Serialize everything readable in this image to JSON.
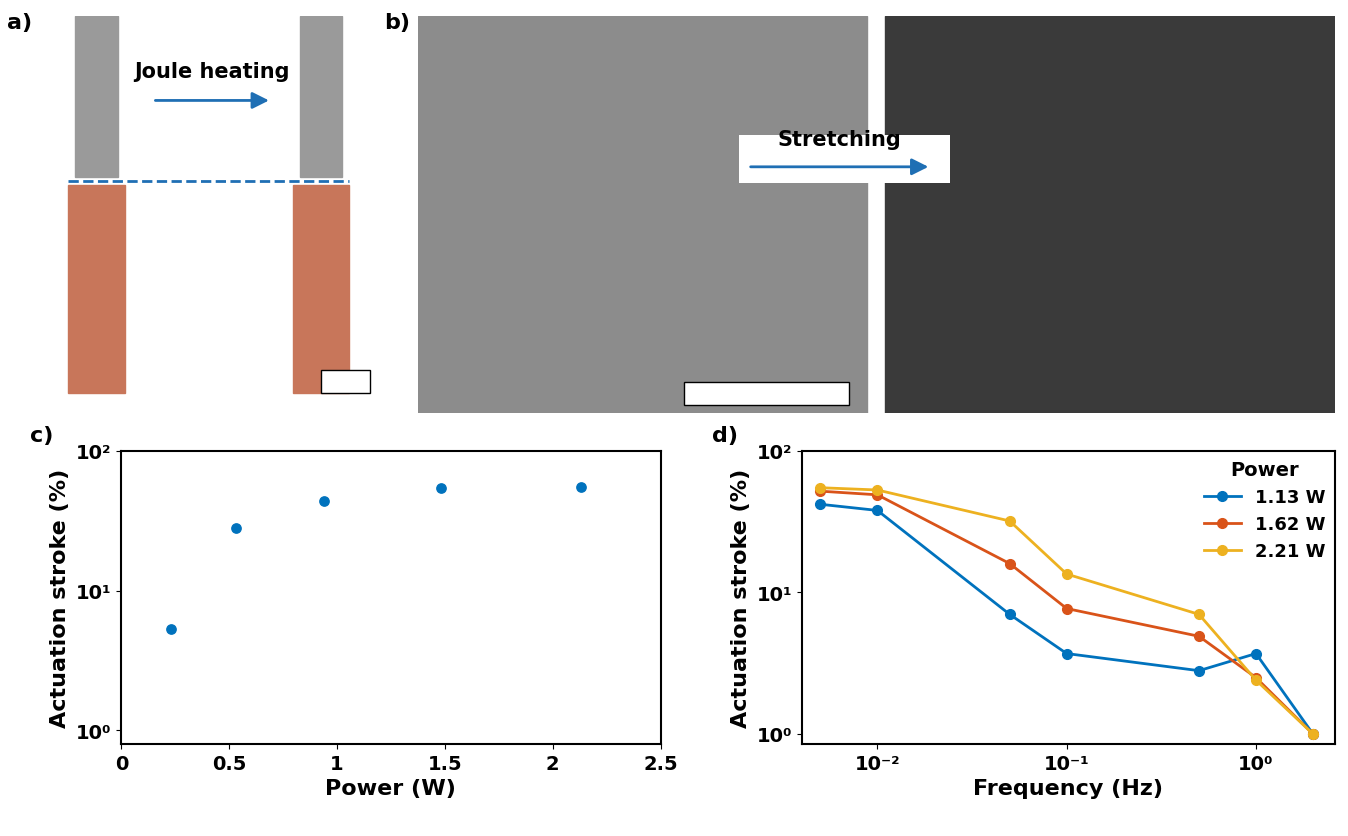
{
  "images": [
    {
      "label": "a)",
      "annotation": "Joule heating"
    },
    {
      "label": "b)",
      "annotation": "Stretching"
    }
  ],
  "chart_data": [
    {
      "type": "scatter",
      "title": "c)",
      "x_label": "Power (W)",
      "y_label": "Actuation stroke (%)",
      "log": "y",
      "marker": "o",
      "color": "#0072BD",
      "x": [
        0.23,
        0.53,
        0.94,
        1.48,
        2.13
      ],
      "values": [
        5.3,
        28,
        44,
        54,
        55
      ],
      "xlim": [
        0,
        2.5
      ],
      "xticks": [
        0,
        0.5,
        1,
        1.5,
        2,
        2.5
      ],
      "ylim": [
        0.8,
        100
      ],
      "yticks": [
        {
          "value": 1,
          "label": "10⁰"
        },
        {
          "value": 10,
          "label": "10¹"
        },
        {
          "value": 100,
          "label": "10²"
        }
      ]
    },
    {
      "type": "line",
      "title": "d)",
      "x_label": "Frequency (Hz)",
      "y_label": "Actuation stroke (%)",
      "log": true,
      "marker": "o",
      "legend": "upper right",
      "legend_title": "Power",
      "x": [
        0.005,
        0.01,
        0.05,
        0.1,
        0.5,
        1,
        2
      ],
      "series": [
        {
          "name": "1.13 W",
          "color": "#0072BD",
          "values": [
            42,
            38,
            7,
            3.7,
            2.8,
            3.7,
            1.0
          ]
        },
        {
          "name": "1.62 W",
          "color": "#D95319",
          "values": [
            52,
            49,
            16,
            7.7,
            4.9,
            2.5,
            1.0
          ]
        },
        {
          "name": "2.21 W",
          "color": "#EDB120",
          "values": [
            55,
            53,
            32,
            13.5,
            7,
            2.4,
            1.0
          ]
        }
      ],
      "xlim": [
        0.004,
        2.6
      ],
      "xticks": [
        {
          "value": 0.01,
          "label": "10⁻²"
        },
        {
          "value": 0.1,
          "label": "10⁻¹"
        },
        {
          "value": 1,
          "label": "10⁰"
        }
      ],
      "ylim": [
        0.85,
        100
      ],
      "yticks": [
        {
          "value": 1,
          "label": "10⁰"
        },
        {
          "value": 10,
          "label": "10¹"
        },
        {
          "value": 100,
          "label": "10²"
        }
      ]
    }
  ]
}
